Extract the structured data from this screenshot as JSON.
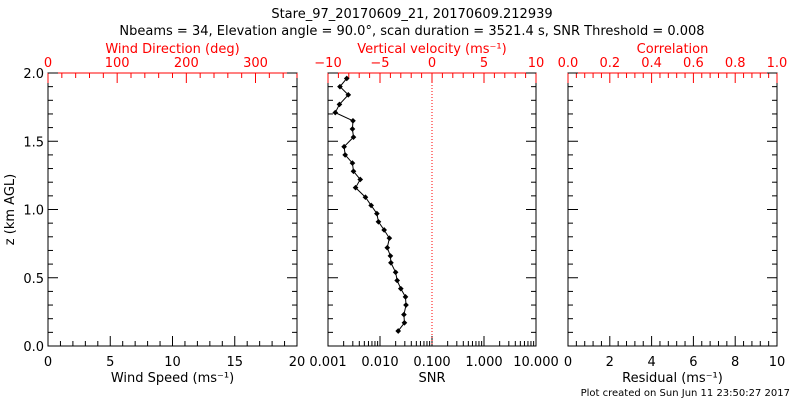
{
  "title": "Stare_97_20170609_21, 20170609.212939",
  "subtitle": "Nbeams = 34, Elevation angle = 90.0°, scan duration = 3521.4 s, SNR Threshold = 0.008",
  "footer": "Plot created on Sun Jun 11 23:50:27 2017",
  "colors": {
    "axis": "#000000",
    "secondary_axis": "#ff0000",
    "data": "#000000",
    "zero_line": "#ff0000"
  },
  "chart_data": [
    {
      "type": "line",
      "panel": "left",
      "ylabel": "z (km AGL)",
      "ylim": [
        0,
        2
      ],
      "yticks": [
        "0.0",
        "0.5",
        "1.0",
        "1.5",
        "2.0"
      ],
      "xlabel": "Wind Speed (ms⁻¹)",
      "xlim": [
        0,
        20
      ],
      "xticks": [
        "0",
        "5",
        "10",
        "15",
        "20"
      ],
      "top_xlabel": "Wind Direction (deg)",
      "top_xlim": [
        0,
        360
      ],
      "top_xticks": [
        "0",
        "100",
        "200",
        "300"
      ],
      "series": []
    },
    {
      "type": "line",
      "panel": "middle",
      "ylim": [
        0,
        2
      ],
      "xlabel": "SNR",
      "xscale": "log",
      "xlim": [
        0.001,
        10
      ],
      "xticks": [
        "0.001",
        "0.010",
        "0.100",
        "1.000",
        "10.000"
      ],
      "top_xlabel": "Vertical velocity (ms⁻¹)",
      "top_xlim": [
        -10,
        10
      ],
      "top_xticks": [
        "−10",
        "−5",
        "0",
        "5",
        "10"
      ],
      "series": [
        {
          "name": "Vertical velocity",
          "axis": "top",
          "x": [
            -8.2,
            -8.85,
            -8.05,
            -8.9,
            -9.3,
            -7.6,
            -7.65,
            -7.55,
            -8.45,
            -8.35,
            -7.65,
            -7.55,
            -6.9,
            -7.35,
            -6.4,
            -5.85,
            -5.3,
            -5.15,
            -4.6,
            -4.1,
            -4.3,
            -4.0,
            -3.95,
            -3.5,
            -3.35,
            -3.0,
            -2.55,
            -2.5,
            -2.7,
            -2.65,
            -3.25
          ],
          "y": [
            1.96,
            1.9,
            1.84,
            1.77,
            1.71,
            1.65,
            1.59,
            1.53,
            1.46,
            1.4,
            1.34,
            1.28,
            1.22,
            1.16,
            1.09,
            1.03,
            0.97,
            0.91,
            0.85,
            0.79,
            0.72,
            0.66,
            0.61,
            0.54,
            0.48,
            0.42,
            0.36,
            0.3,
            0.23,
            0.17,
            0.11
          ]
        }
      ],
      "reference_line": {
        "axis": "top",
        "value": 0
      }
    },
    {
      "type": "line",
      "panel": "right",
      "ylim": [
        0,
        2
      ],
      "xlabel": "Residual (ms⁻¹)",
      "xlim": [
        0,
        10
      ],
      "xticks": [
        "0",
        "2",
        "4",
        "6",
        "8",
        "10"
      ],
      "top_xlabel": "Correlation",
      "top_xlim": [
        0,
        1
      ],
      "top_xticks": [
        "0.0",
        "0.2",
        "0.4",
        "0.6",
        "0.8",
        "1.0"
      ],
      "series": []
    }
  ]
}
